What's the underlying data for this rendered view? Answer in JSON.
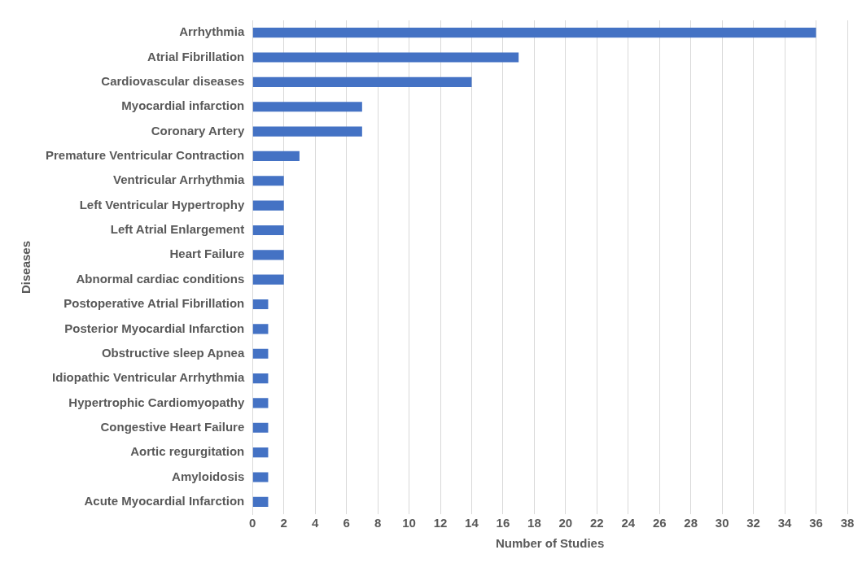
{
  "chart_data": {
    "type": "bar",
    "orientation": "horizontal",
    "xlabel": "Number of Studies",
    "ylabel": "Diseases",
    "categories": [
      "Arrhythmia",
      "Atrial Fibrillation",
      "Cardiovascular diseases",
      "Myocardial infarction",
      "Coronary Artery",
      "Premature Ventricular Contraction",
      "Ventricular Arrhythmia",
      "Left Ventricular Hypertrophy",
      "Left Atrial Enlargement",
      "Heart Failure",
      "Abnormal cardiac conditions",
      "Postoperative Atrial Fibrillation",
      "Posterior Myocardial Infarction",
      "Obstructive sleep Apnea",
      "Idiopathic Ventricular Arrhythmia",
      "Hypertrophic Cardiomyopathy",
      "Congestive Heart Failure",
      "Aortic regurgitation",
      "Amyloidosis",
      "Acute Myocardial Infarction"
    ],
    "values": [
      36,
      17,
      14,
      7,
      7,
      3,
      2,
      2,
      2,
      2,
      2,
      1,
      1,
      1,
      1,
      1,
      1,
      1,
      1,
      1
    ],
    "color": "#4472c4",
    "xlim": [
      0,
      38
    ],
    "xticks": [
      0,
      2,
      4,
      6,
      8,
      10,
      12,
      14,
      16,
      18,
      20,
      22,
      24,
      26,
      28,
      30,
      32,
      34,
      36,
      38
    ],
    "grid": "x",
    "legend": false
  }
}
